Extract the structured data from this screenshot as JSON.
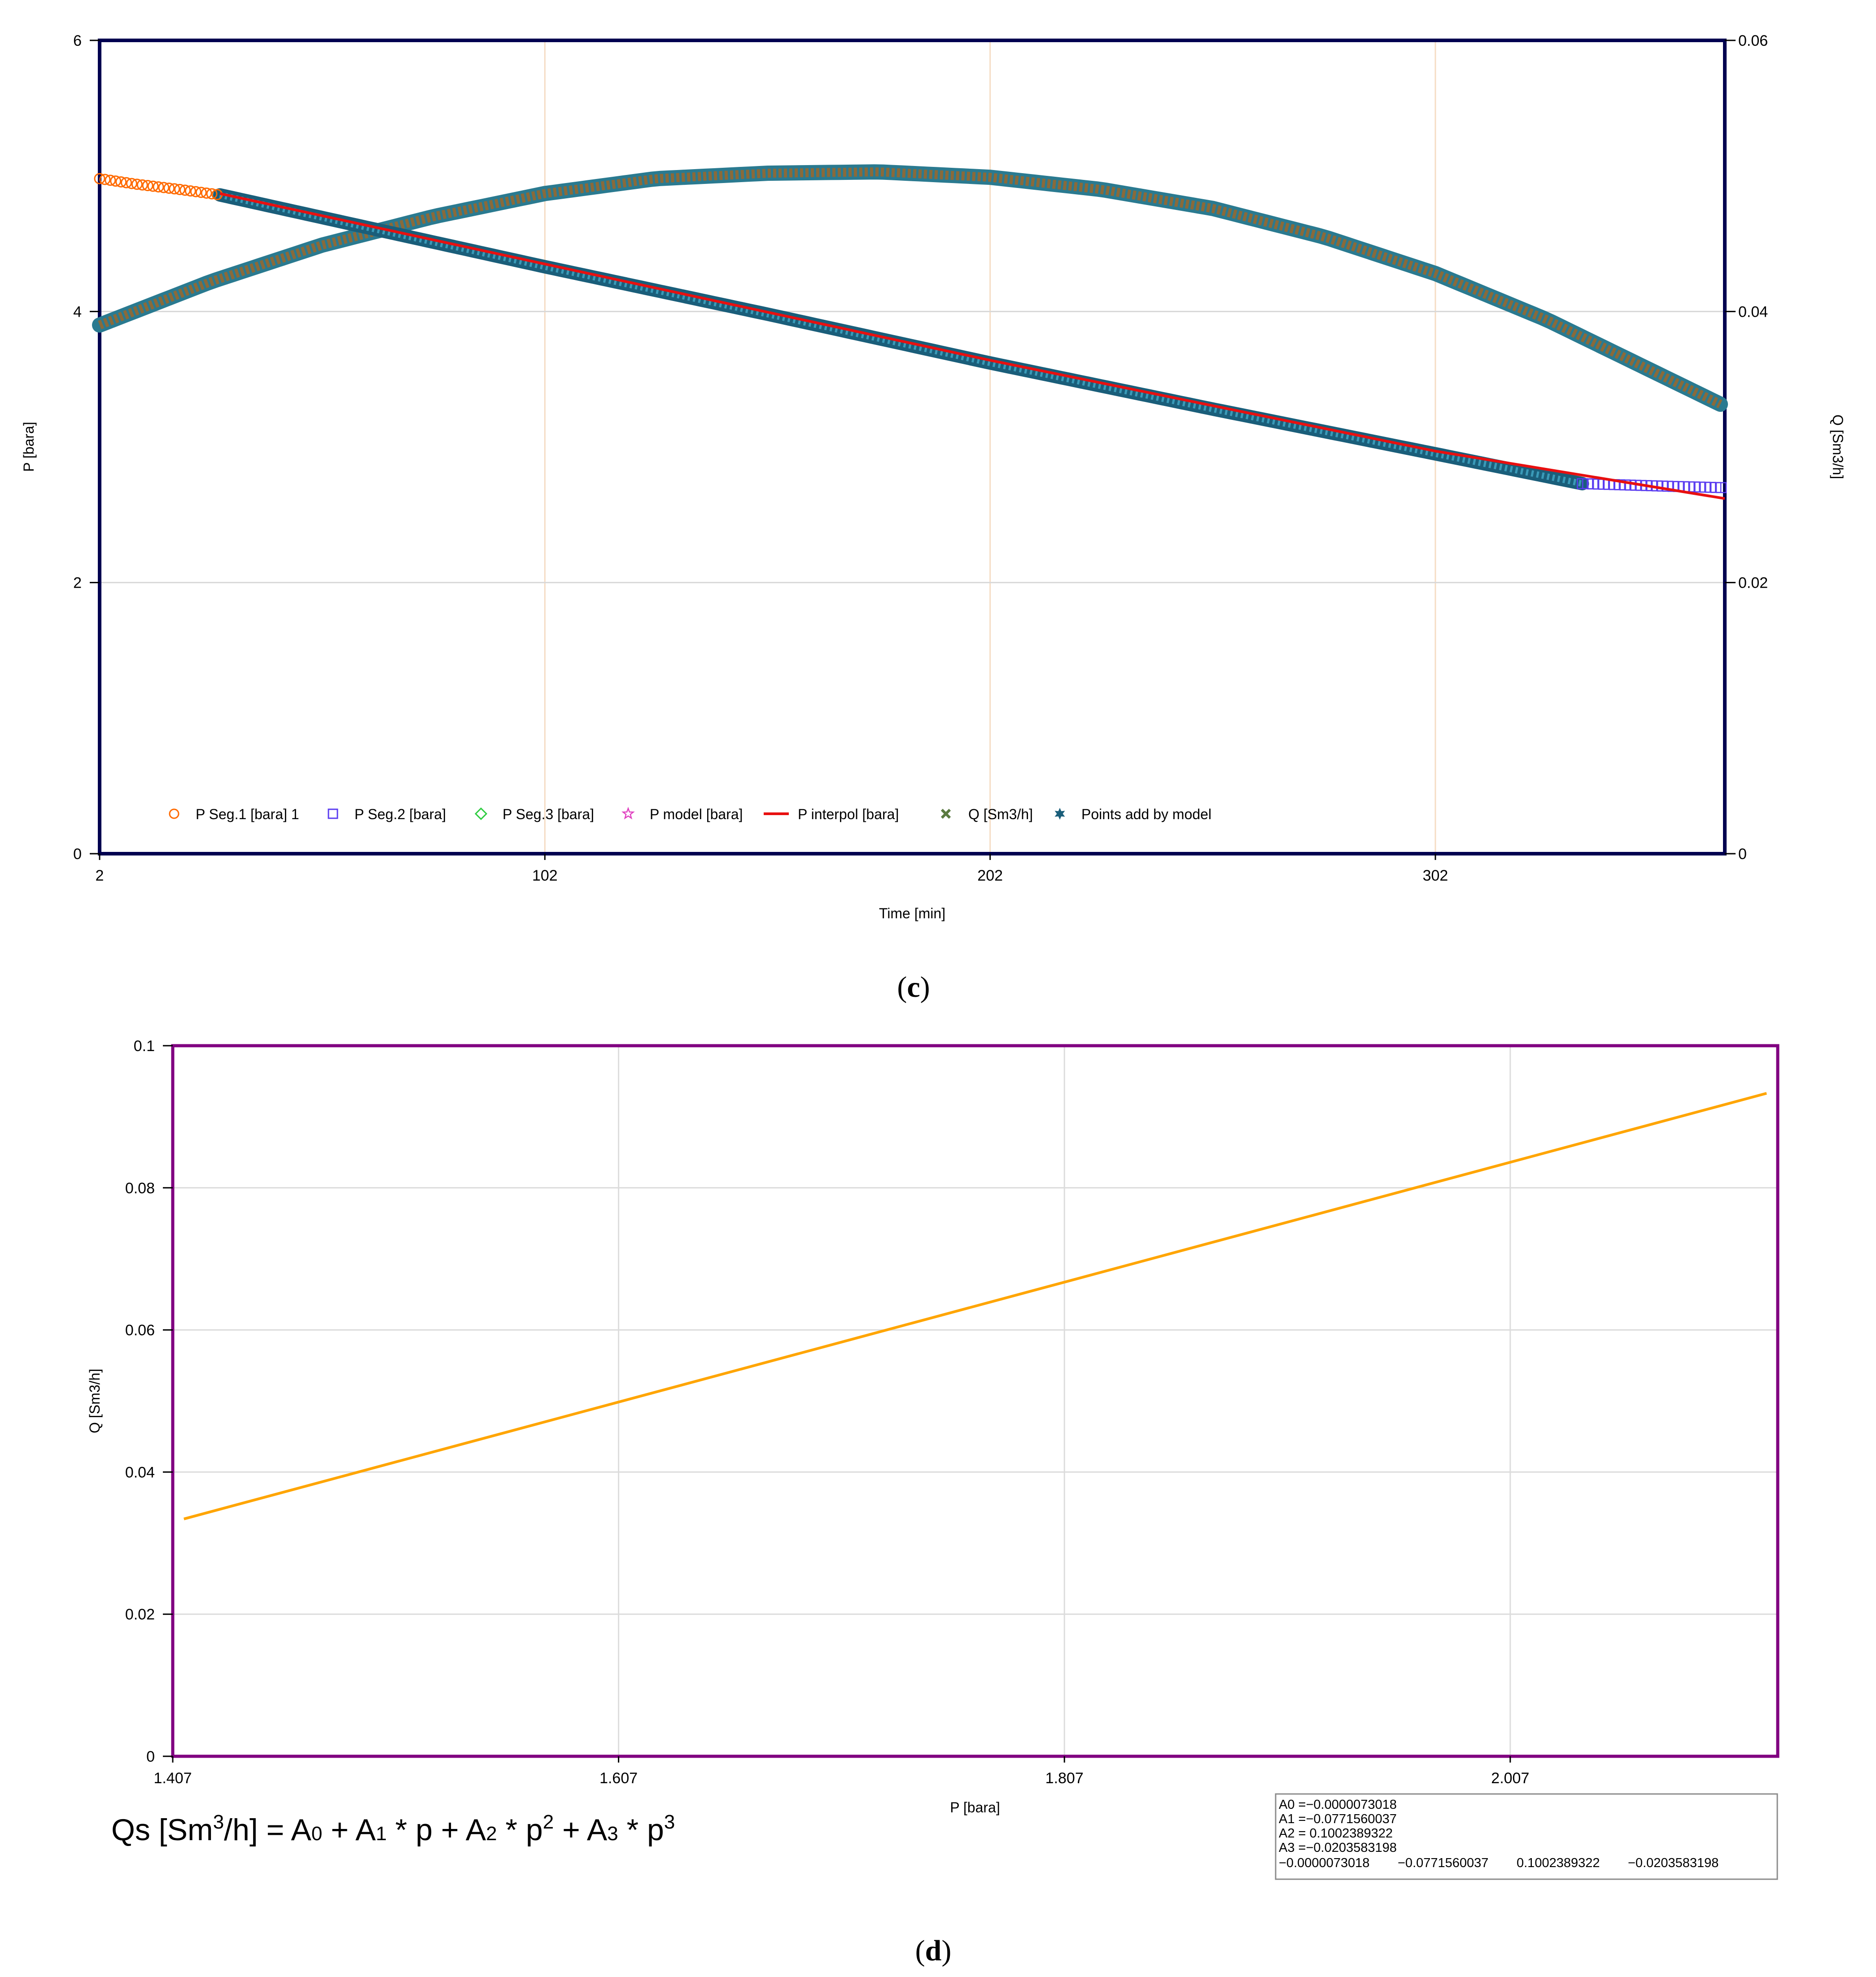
{
  "chart_data": [
    {
      "type": "line",
      "caption_letter": "c",
      "xlabel": "Time [min]",
      "ylabel": "P [bara]",
      "y2label": "Q [Sm3/h]",
      "xlim": [
        2,
        367
      ],
      "ylim": [
        0,
        6
      ],
      "y2lim": [
        0,
        0.06
      ],
      "xticks": [
        "2",
        "102",
        "202",
        "302"
      ],
      "yticks": [
        "0",
        "2",
        "4",
        "6"
      ],
      "y2ticks": [
        "0",
        "0.02",
        "0.04",
        "0.06"
      ],
      "grid": true,
      "legend_position": "bottom-left",
      "legend": [
        {
          "label": "P Seg.1 [bara] 1",
          "marker": "circle",
          "color": "#ff6a00"
        },
        {
          "label": "P Seg.2 [bara]",
          "marker": "square",
          "color": "#5b3df0"
        },
        {
          "label": "P Seg.3 [bara]",
          "marker": "diamond",
          "color": "#2ecc40"
        },
        {
          "label": "P model [bara]",
          "marker": "star",
          "color": "#e040c0"
        },
        {
          "label": "P interpol [bara]",
          "marker": "line",
          "color": "#e81010"
        },
        {
          "label": "Q [Sm3/h]",
          "marker": "cross",
          "color": "#5a7a40"
        },
        {
          "label": "Points add by model",
          "marker": "star6",
          "color": "#1a5e7a"
        }
      ],
      "series": [
        {
          "name": "P Seg.1 [bara] 1",
          "axis": "left",
          "color": "#ff6a00",
          "x": [
            2,
            10,
            20,
            29
          ],
          "y": [
            4.98,
            4.94,
            4.9,
            4.86
          ]
        },
        {
          "name": "P Seg.2 [bara]",
          "axis": "left",
          "color": "#5b3df0",
          "x": [
            335,
            345,
            355,
            367
          ],
          "y": [
            2.73,
            2.72,
            2.71,
            2.7
          ]
        },
        {
          "name": "Points add by model",
          "axis": "left",
          "color": "#1a5e7a",
          "x": [
            29,
            62,
            102,
            152,
            202,
            252,
            302,
            335
          ],
          "y": [
            4.86,
            4.62,
            4.33,
            3.98,
            3.62,
            3.28,
            2.95,
            2.73
          ]
        },
        {
          "name": "P interpol [bara]",
          "axis": "left",
          "color": "#e81010",
          "x": [
            29,
            102,
            202,
            302,
            367
          ],
          "y": [
            4.87,
            4.35,
            3.64,
            2.97,
            2.62
          ]
        },
        {
          "name": "Q [Sm3/h]",
          "axis": "right",
          "color": "#5a7a40",
          "x": [
            2,
            27,
            52,
            77,
            102,
            127,
            152,
            177,
            202,
            227,
            252,
            277,
            302,
            327,
            352,
            367
          ],
          "y": [
            0.039,
            0.0422,
            0.0449,
            0.047,
            0.0487,
            0.0498,
            0.0502,
            0.0503,
            0.0499,
            0.049,
            0.0476,
            0.0455,
            0.0428,
            0.0394,
            0.0354,
            0.033
          ]
        }
      ]
    },
    {
      "type": "line",
      "caption_letter": "d",
      "xlabel": "P [bara]",
      "ylabel": "Q [Sm3/h]",
      "xlim": [
        1.407,
        2.127
      ],
      "ylim": [
        0,
        0.1
      ],
      "xticks": [
        "1.407",
        "1.607",
        "1.807",
        "2.007"
      ],
      "yticks": [
        "0",
        "0.02",
        "0.04",
        "0.06",
        "0.08",
        "0.1"
      ],
      "grid": true,
      "series": [
        {
          "axis": "left",
          "color": "#ffa500",
          "x": [
            1.412,
            2.122
          ],
          "y": [
            0.0334,
            0.0933
          ]
        }
      ],
      "formula": {
        "lhs": "Qs [Sm",
        "lhs_sup": "3",
        "lhs_end": "/h] = A",
        "terms": [
          "0",
          " +  A",
          "1",
          " * p + A",
          "2",
          " * p",
          "2",
          " + A",
          "3",
          " * p",
          "3"
        ]
      },
      "coefficients": {
        "lines": [
          "A0 =−0.0000073018",
          "A1 =−0.0771560037",
          "A2 = 0.1002389322",
          "A3 =−0.0203583198"
        ],
        "row": [
          "−0.0000073018",
          "−0.0771560037",
          "0.1002389322",
          "−0.0203583198"
        ]
      }
    }
  ]
}
